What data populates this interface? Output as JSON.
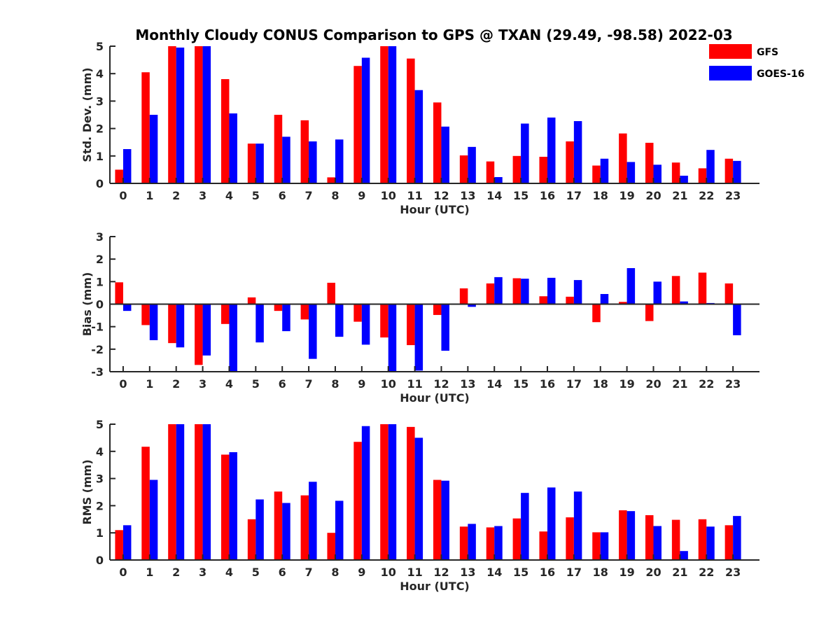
{
  "chart_data": {
    "title": "Monthly Cloudy CONUS Comparison to GPS @ TXAN (29.49, -98.58) 2022-03",
    "legend": {
      "placement": "top-right",
      "entries": [
        {
          "name": "GFS",
          "color": "#ff0000"
        },
        {
          "name": "GOES-16",
          "color": "#0000ff"
        }
      ]
    },
    "panels": [
      {
        "type": "bar",
        "ylabel": "Std. Dev. (mm)",
        "xlabel": "Hour (UTC)",
        "ylim": [
          0,
          5
        ],
        "yticks": [
          "0",
          "1",
          "2",
          "3",
          "4",
          "5"
        ],
        "categories": [
          "0",
          "1",
          "2",
          "3",
          "4",
          "5",
          "6",
          "7",
          "8",
          "9",
          "10",
          "11",
          "12",
          "13",
          "14",
          "15",
          "16",
          "17",
          "18",
          "19",
          "20",
          "21",
          "22",
          "23"
        ],
        "series": [
          {
            "name": "GFS",
            "color": "#ff0000",
            "values": [
              0.5,
              4.05,
              5.0,
              5.0,
              3.8,
              1.45,
              2.5,
              2.3,
              0.22,
              4.28,
              5.0,
              4.55,
              2.95,
              1.02,
              0.8,
              1.0,
              0.97,
              1.53,
              0.65,
              1.82,
              1.48,
              0.76,
              0.55,
              0.9
            ]
          },
          {
            "name": "GOES-16",
            "color": "#0000ff",
            "values": [
              1.25,
              2.5,
              4.95,
              5.0,
              2.55,
              1.45,
              1.7,
              1.53,
              1.6,
              4.58,
              5.0,
              3.4,
              2.07,
              1.33,
              0.23,
              2.18,
              2.4,
              2.27,
              0.9,
              0.78,
              0.68,
              0.28,
              1.22,
              0.82
            ]
          }
        ]
      },
      {
        "type": "bar",
        "ylabel": "Bias (mm)",
        "xlabel": "Hour (UTC)",
        "ylim": [
          -3,
          3
        ],
        "yticks": [
          "-3",
          "-2",
          "-1",
          "0",
          "1",
          "2",
          "3"
        ],
        "categories": [
          "0",
          "1",
          "2",
          "3",
          "4",
          "5",
          "6",
          "7",
          "8",
          "9",
          "10",
          "11",
          "12",
          "13",
          "14",
          "15",
          "16",
          "17",
          "18",
          "19",
          "20",
          "21",
          "22",
          "23"
        ],
        "series": [
          {
            "name": "GFS",
            "color": "#ff0000",
            "values": [
              0.97,
              -0.93,
              -1.73,
              -2.7,
              -0.88,
              0.3,
              -0.3,
              -0.68,
              0.95,
              -0.78,
              -1.48,
              -1.82,
              -0.48,
              0.7,
              0.92,
              1.15,
              0.35,
              0.33,
              -0.8,
              0.1,
              -0.75,
              1.25,
              1.4,
              0.92
            ]
          },
          {
            "name": "GOES-16",
            "color": "#0000ff",
            "values": [
              -0.3,
              -1.6,
              -1.92,
              -2.28,
              -3.0,
              -1.7,
              -1.2,
              -2.43,
              -1.45,
              -1.8,
              -3.0,
              -2.95,
              -2.07,
              -0.12,
              1.2,
              1.13,
              1.17,
              1.07,
              0.45,
              1.6,
              1.0,
              0.12,
              0.05,
              -1.38
            ]
          }
        ]
      },
      {
        "type": "bar",
        "ylabel": "RMS (mm)",
        "xlabel": "Hour (UTC)",
        "ylim": [
          0,
          5
        ],
        "yticks": [
          "0",
          "1",
          "2",
          "3",
          "4",
          "5"
        ],
        "categories": [
          "0",
          "1",
          "2",
          "3",
          "4",
          "5",
          "6",
          "7",
          "8",
          "9",
          "10",
          "11",
          "12",
          "13",
          "14",
          "15",
          "16",
          "17",
          "18",
          "19",
          "20",
          "21",
          "22",
          "23"
        ],
        "series": [
          {
            "name": "GFS",
            "color": "#ff0000",
            "values": [
              1.1,
              4.17,
              5.0,
              5.0,
              3.88,
              1.5,
              2.52,
              2.38,
              1.0,
              4.35,
              5.0,
              4.9,
              2.95,
              1.23,
              1.2,
              1.53,
              1.05,
              1.57,
              1.02,
              1.83,
              1.65,
              1.48,
              1.5,
              1.28
            ]
          },
          {
            "name": "GOES-16",
            "color": "#0000ff",
            "values": [
              1.28,
              2.95,
              5.0,
              5.0,
              3.97,
              2.23,
              2.1,
              2.88,
              2.18,
              4.93,
              5.0,
              4.5,
              2.92,
              1.33,
              1.25,
              2.47,
              2.67,
              2.52,
              1.02,
              1.8,
              1.25,
              0.33,
              1.23,
              1.62
            ]
          }
        ]
      }
    ]
  }
}
